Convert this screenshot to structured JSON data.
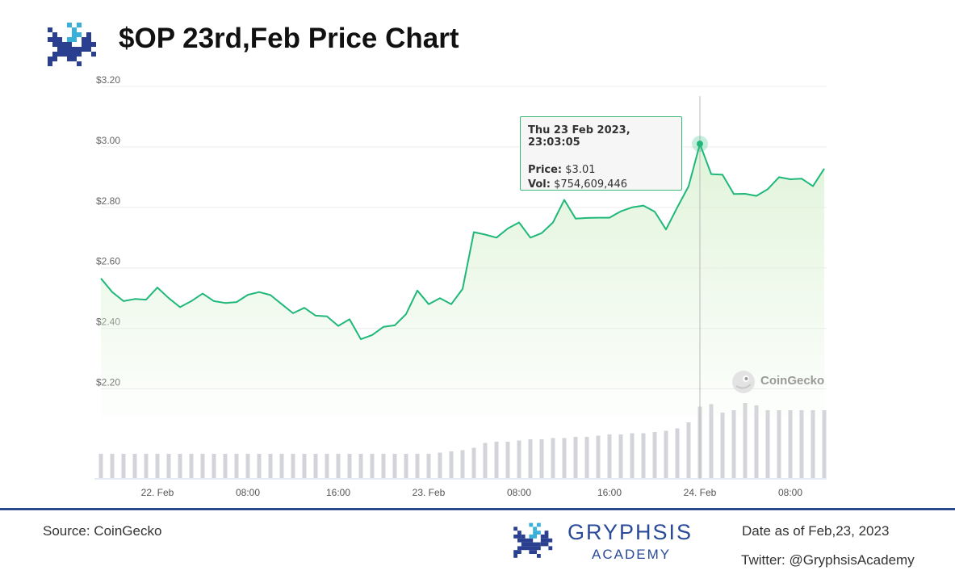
{
  "header": {
    "title": "$OP 23rd,Feb Price Chart"
  },
  "footer": {
    "source": "Source: CoinGecko",
    "date": "Date as of Feb,23, 2023",
    "twitter": "Twitter: @GryphsisAcademy",
    "brand_name": "GRYPHSIS",
    "brand_sub": "ACADEMY"
  },
  "tooltip": {
    "date": "Thu 23 Feb 2023, 23:03:05",
    "price_label": "Price:",
    "price_value": "$3.01",
    "vol_label": "Vol:",
    "vol_value": "$754,609,446"
  },
  "watermark": "CoinGecko",
  "colors": {
    "line": "#1fb87a",
    "fill": "#dff3d8",
    "volume": "#d3d4da",
    "brand": "#2a4a9a",
    "divider": "#2a4a8c"
  },
  "chart_data": {
    "type": "line",
    "ylim": [
      2.1,
      3.2
    ],
    "yticks": [
      "$3.20",
      "$3.00",
      "$2.80",
      "$2.60",
      "$2.40",
      "$2.20"
    ],
    "ytick_values": [
      3.2,
      3.0,
      2.8,
      2.6,
      2.4,
      2.2
    ],
    "xticks": [
      "22. Feb",
      "08:00",
      "16:00",
      "23. Feb",
      "08:00",
      "16:00",
      "24. Feb",
      "08:00"
    ],
    "xtick_hours": [
      0,
      8,
      16,
      24,
      32,
      40,
      48,
      56
    ],
    "x_start_hour": -5,
    "x_end_hour": 59,
    "hour_step": 1,
    "highlight_index": 53,
    "price_series": [
      2.565,
      2.52,
      2.49,
      2.497,
      2.495,
      2.535,
      2.5,
      2.47,
      2.49,
      2.515,
      2.49,
      2.484,
      2.487,
      2.511,
      2.52,
      2.51,
      2.48,
      2.45,
      2.468,
      2.442,
      2.44,
      2.408,
      2.43,
      2.364,
      2.378,
      2.405,
      2.41,
      2.447,
      2.525,
      2.48,
      2.5,
      2.48,
      2.53,
      2.718,
      2.71,
      2.7,
      2.73,
      2.75,
      2.7,
      2.715,
      2.75,
      2.825,
      2.763,
      2.765,
      2.766,
      2.766,
      2.787,
      2.8,
      2.806,
      2.786,
      2.727,
      2.8,
      2.87,
      3.01,
      2.91,
      2.908,
      2.844,
      2.845,
      2.838,
      2.86,
      2.9,
      2.893,
      2.895,
      2.87,
      2.928
    ],
    "volume_series": [
      1.0,
      1.0,
      1.0,
      1.0,
      1.0,
      1.0,
      1.0,
      1.0,
      1.0,
      1.0,
      1.0,
      1.0,
      1.0,
      1.0,
      1.0,
      1.0,
      1.0,
      1.0,
      1.0,
      1.0,
      1.0,
      1.0,
      1.0,
      1.0,
      1.0,
      1.0,
      1.0,
      1.0,
      1.0,
      1.0,
      1.05,
      1.1,
      1.15,
      1.25,
      1.45,
      1.5,
      1.5,
      1.55,
      1.6,
      1.6,
      1.65,
      1.65,
      1.7,
      1.7,
      1.75,
      1.8,
      1.8,
      1.85,
      1.85,
      1.9,
      1.95,
      2.05,
      2.3,
      2.95,
      3.05,
      2.7,
      2.8,
      3.1,
      3.0,
      2.8,
      2.8,
      2.8,
      2.8,
      2.8,
      2.8
    ]
  }
}
